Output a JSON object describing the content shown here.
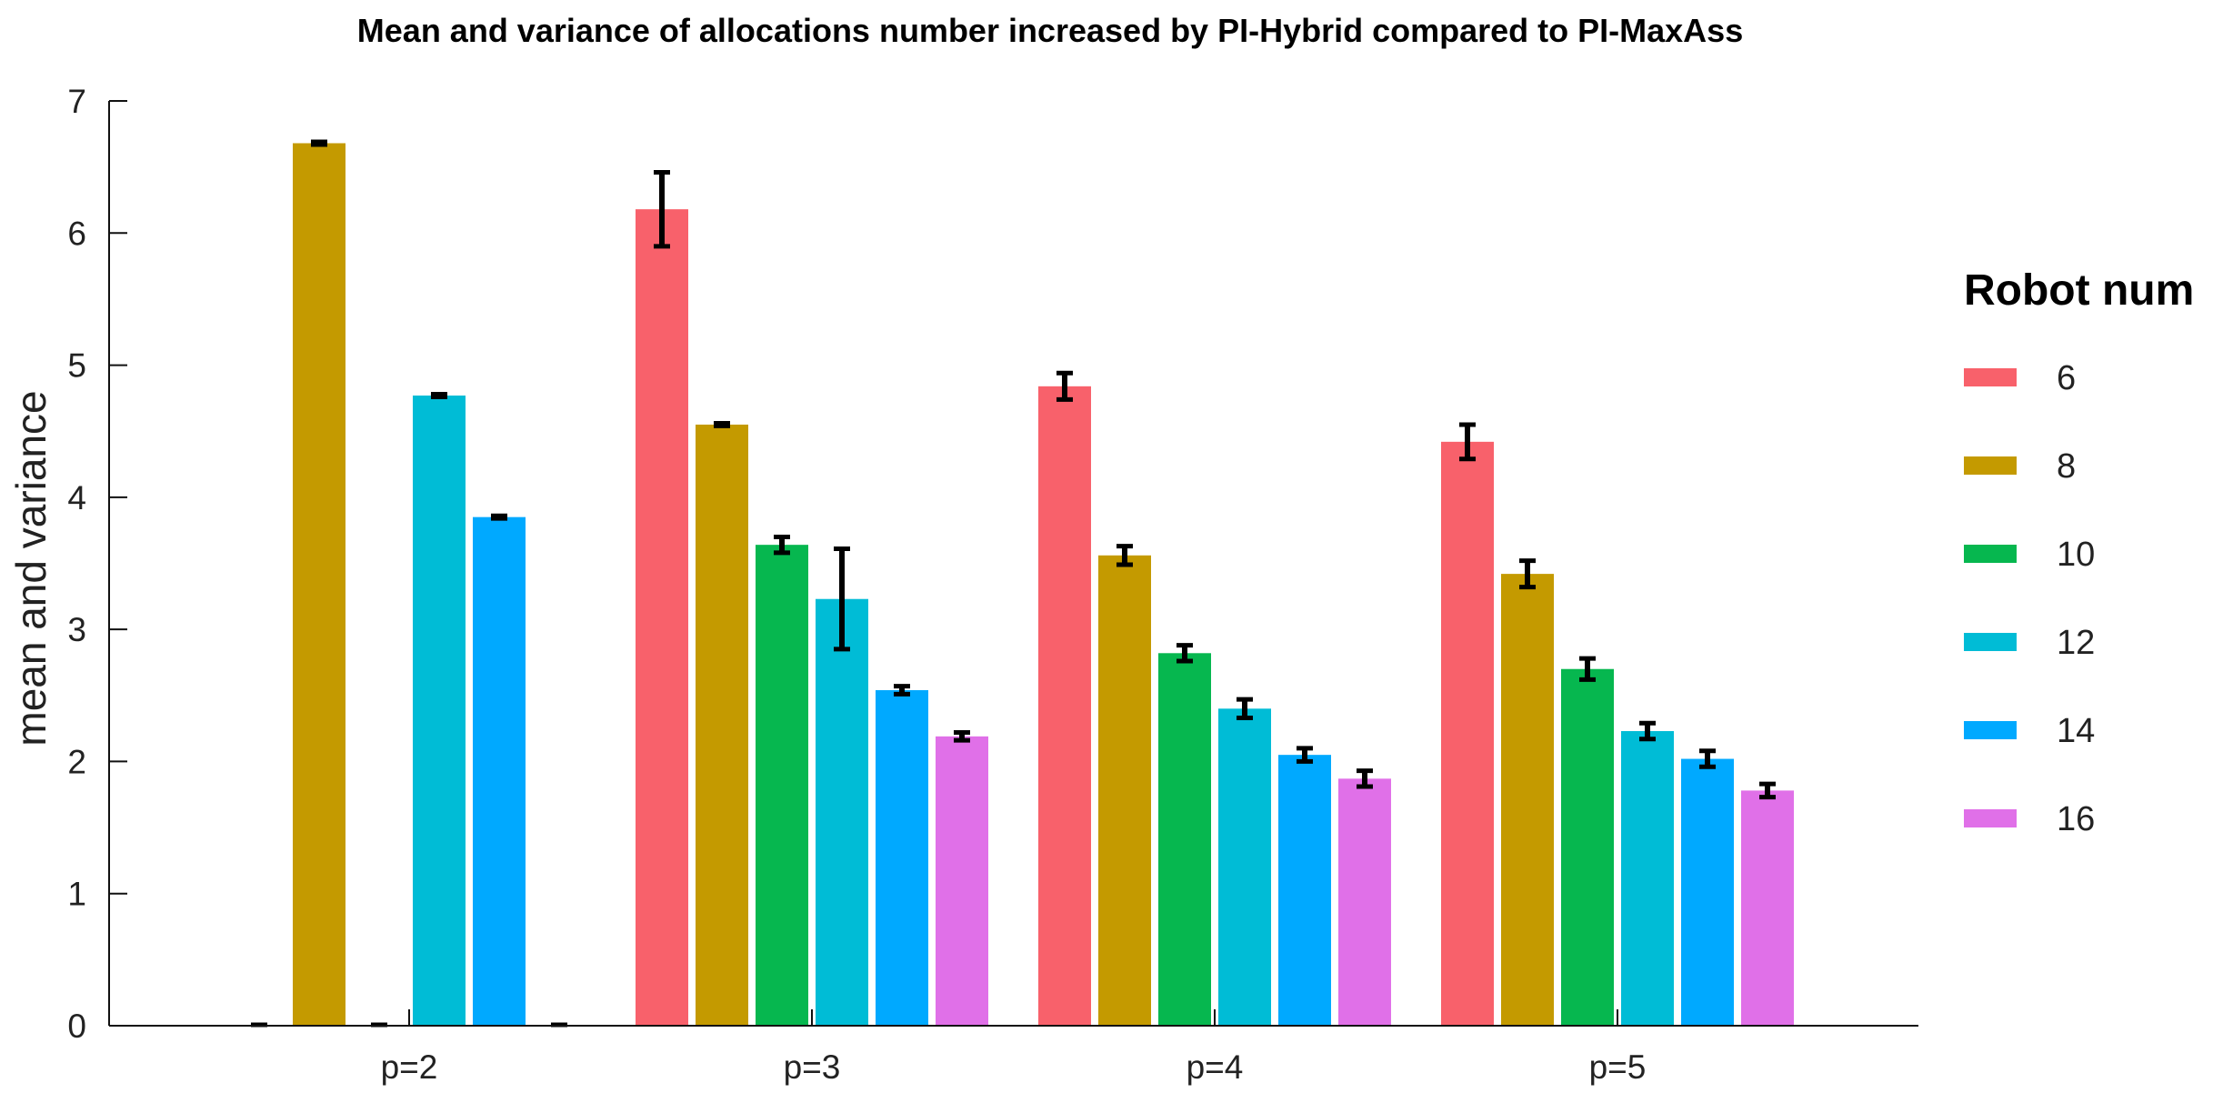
{
  "chart_data": {
    "type": "bar",
    "title": "Mean and variance of allocations number increased by PI-Hybrid compared to PI-MaxAss",
    "xlabel": "",
    "ylabel": "mean and variance",
    "ylim": [
      0,
      7
    ],
    "yticks": [
      "0",
      "1",
      "2",
      "3",
      "4",
      "5",
      "6",
      "7"
    ],
    "categories": [
      "p=2",
      "p=3",
      "p=4",
      "p=5"
    ],
    "legend_title": "Robot num",
    "legend_position": "right",
    "series": [
      {
        "name": "6",
        "color": "#F8616B",
        "values": [
          0,
          6.18,
          4.84,
          4.42
        ],
        "errors": [
          0,
          0.28,
          0.1,
          0.13
        ]
      },
      {
        "name": "8",
        "color": "#C49A00",
        "values": [
          6.68,
          4.55,
          3.56,
          3.42
        ],
        "errors": [
          0.01,
          0.01,
          0.07,
          0.1
        ]
      },
      {
        "name": "10",
        "color": "#06B74F",
        "values": [
          0,
          3.64,
          2.82,
          2.7
        ],
        "errors": [
          0,
          0.06,
          0.06,
          0.08
        ]
      },
      {
        "name": "12",
        "color": "#00BCD6",
        "values": [
          4.77,
          3.23,
          2.4,
          2.23
        ],
        "errors": [
          0.01,
          0.38,
          0.07,
          0.06
        ]
      },
      {
        "name": "14",
        "color": "#00A9FF",
        "values": [
          3.85,
          2.54,
          2.05,
          2.02
        ],
        "errors": [
          0.01,
          0.03,
          0.05,
          0.06
        ]
      },
      {
        "name": "16",
        "color": "#E070E8",
        "values": [
          0,
          2.19,
          1.87,
          1.78
        ],
        "errors": [
          0,
          0.03,
          0.06,
          0.05
        ]
      }
    ]
  }
}
